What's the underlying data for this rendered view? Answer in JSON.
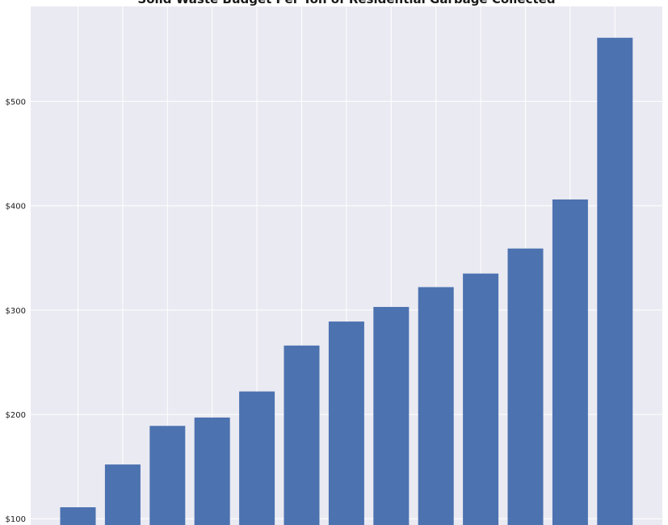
{
  "chart_data": {
    "type": "bar",
    "title": "Solid Waste Budget Per Ton of Residential Garbage Collected",
    "xlabel": "",
    "ylabel": "",
    "values": [
      111,
      152,
      189,
      197,
      222,
      266,
      289,
      303,
      322,
      335,
      359,
      406,
      561
    ],
    "y_ticks": [
      100,
      200,
      300,
      400,
      500
    ],
    "y_tick_labels": [
      "$100",
      "$200",
      "$300",
      "$400",
      "$500"
    ],
    "ylim": [
      94,
      591
    ],
    "grid": true,
    "legend": "none",
    "colors": {
      "bar": "#4c72b0",
      "background": "#eaeaf2",
      "grid": "#ffffff"
    }
  }
}
